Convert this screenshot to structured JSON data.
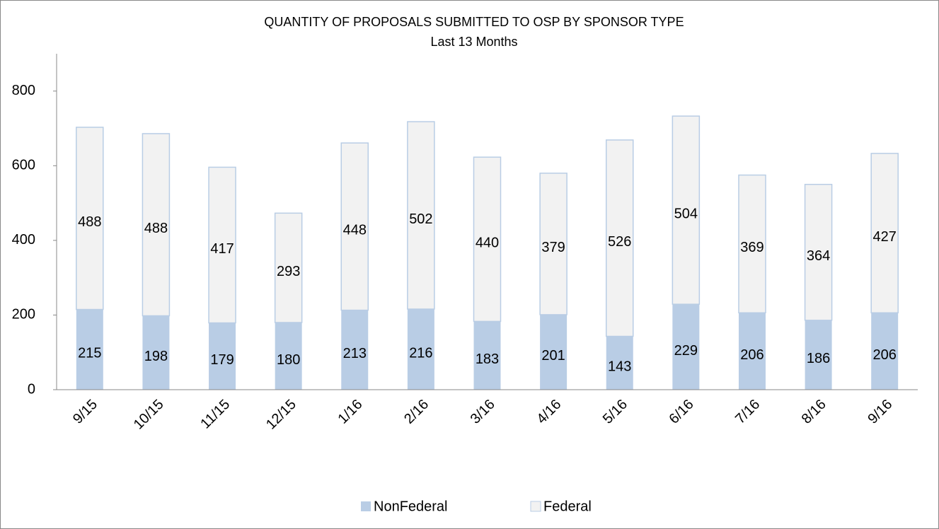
{
  "chart_data": {
    "type": "stacked_bar",
    "title": "QUANTITY OF PROPOSALS SUBMITTED TO OSP BY SPONSOR TYPE",
    "subtitle": "Last 13 Months",
    "categories": [
      "9/15",
      "10/15",
      "11/15",
      "12/15",
      "1/16",
      "2/16",
      "3/16",
      "4/16",
      "5/16",
      "6/16",
      "7/16",
      "8/16",
      "9/16"
    ],
    "series": [
      {
        "name": "NonFederal",
        "color": "#b9cde5",
        "values": [
          215,
          198,
          179,
          180,
          213,
          216,
          183,
          201,
          143,
          229,
          206,
          186,
          206
        ]
      },
      {
        "name": "Federal",
        "color": "#f2f2f2",
        "values": [
          488,
          488,
          417,
          293,
          448,
          502,
          440,
          379,
          526,
          504,
          369,
          364,
          427
        ]
      }
    ],
    "ylim": [
      0,
      900
    ],
    "yticks": [
      0,
      200,
      400,
      600,
      800
    ],
    "grid": false,
    "legend": "bottom"
  }
}
